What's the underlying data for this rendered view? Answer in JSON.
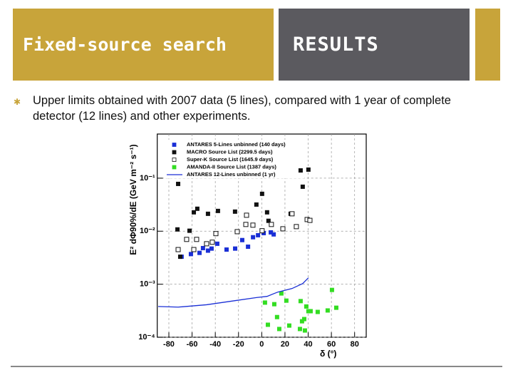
{
  "slide": {
    "section": "Fixed-source search",
    "heading": "RESULTS",
    "bullet": "Upper limits obtained with 2007 data (5 lines), compared with 1 year of complete detector (12 lines) and other experiments."
  },
  "chart_data": {
    "type": "scatter",
    "y_label": "E² dΦ90%/dE (GeV m⁻² s⁻¹)",
    "x_label": "δ (°)",
    "xlim": [
      -90,
      90
    ],
    "xticks": [
      -80,
      -60,
      -40,
      -20,
      0,
      20,
      40,
      60,
      80
    ],
    "ylim": [
      0.0001,
      0.68
    ],
    "log_y": true,
    "grid": true,
    "yticks": [
      {
        "value": 0.0001,
        "label": "10⁻⁴"
      },
      {
        "value": 0.001,
        "label": "10⁻³"
      },
      {
        "value": 0.01,
        "label": "10⁻²"
      },
      {
        "value": 0.1,
        "label": "10⁻¹"
      }
    ],
    "series": [
      {
        "name": "ANTARES 5-Lines unbinned (140 days)",
        "color": "#1a2fd6",
        "marker": "filled",
        "x": [
          -69,
          -61,
          -53.6,
          -50.6,
          -46.3,
          -43.2,
          -38.3,
          -30.3,
          -22.9,
          -16.8,
          -11.8,
          -7.5,
          -3.2,
          1.7,
          7.8,
          10.3
        ],
        "values": [
          0.0033,
          0.0037,
          0.0039,
          0.0048,
          0.0043,
          0.0047,
          0.0058,
          0.0045,
          0.0047,
          0.0068,
          0.0051,
          0.0077,
          0.0084,
          0.0092,
          0.0095,
          0.0087
        ]
      },
      {
        "name": "MACRO Source List (2299.5 days)",
        "color": "#111111",
        "marker": "filled",
        "x": [
          -72,
          -58.5,
          -55.5,
          -46.3,
          -37.7,
          -23,
          -4.6,
          0.3,
          4.6,
          5.8,
          24.9,
          33.5,
          35.3,
          40.2,
          -70.2,
          -62.2,
          -72.6
        ],
        "values": [
          0.078,
          0.0227,
          0.0265,
          0.0213,
          0.0241,
          0.0234,
          0.0318,
          0.0507,
          0.0227,
          0.0157,
          0.0213,
          0.14,
          0.069,
          0.145,
          0.0033,
          0.0102,
          0.0108
        ]
      },
      {
        "name": "Super-K Source List (1645.9 days)",
        "color": "#111111",
        "marker": "open",
        "x": [
          -72,
          -64.7,
          -56.1,
          -58.5,
          -47.5,
          -42.6,
          -39.5,
          -21.1,
          -13.7,
          -7.6,
          -13.1,
          0.3,
          8.3,
          18.2,
          26.1,
          29.8,
          39.1,
          41.5
        ],
        "values": [
          0.0045,
          0.007,
          0.007,
          0.0045,
          0.0058,
          0.0062,
          0.009,
          0.0098,
          0.0134,
          0.013,
          0.02,
          0.0102,
          0.0134,
          0.0111,
          0.0213,
          0.0122,
          0.0166,
          0.016
        ]
      },
      {
        "name": "AMANDA-II Source List (1387 days)",
        "color": "#33dd22",
        "marker": "filled",
        "x": [
          2.8,
          5.3,
          10.8,
          13.2,
          16.9,
          21.2,
          15.1,
          23.7,
          33.5,
          38.4,
          40.2,
          36.6,
          42.1,
          34.7,
          37.2,
          48.2,
          56.8,
          60.5,
          64.2,
          32.9
        ],
        "values": [
          0.00045,
          0.000172,
          0.00042,
          0.00024,
          0.00067,
          0.00049,
          0.000143,
          0.000166,
          0.00048,
          0.00038,
          0.00031,
          0.00022,
          0.00031,
          0.0002,
          0.000134,
          0.0003,
          0.00032,
          0.00078,
          0.00036,
          0.000143
        ]
      },
      {
        "name": "ANTARES 12-Lines unbinned (1 yr)",
        "color": "#1a2fd6",
        "marker": "line",
        "x": [
          -89.2,
          -72,
          -47.5,
          -23,
          -4.6,
          4.6,
          13.8,
          26.1,
          35.3,
          40.2
        ],
        "values": [
          0.00038,
          0.00037,
          0.00041,
          0.00049,
          0.00056,
          0.00059,
          0.00071,
          0.00083,
          0.00103,
          0.00132
        ]
      }
    ]
  }
}
